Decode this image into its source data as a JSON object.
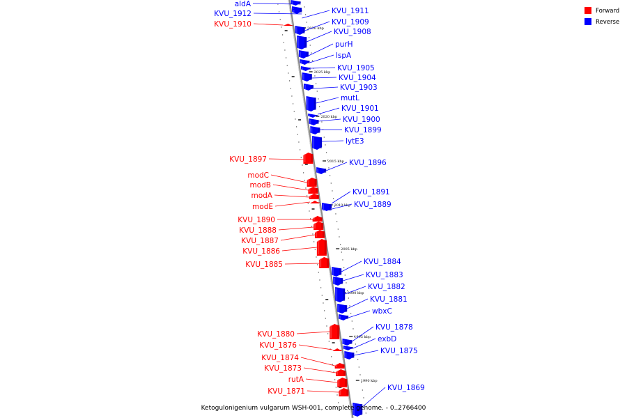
{
  "caption": "Ketogulonigenium vulgarum WSH-001, complete genome. - 0..2766400",
  "colors": {
    "forward": "#ff0000",
    "reverse": "#0000ff",
    "backbone": "#888888"
  },
  "legend": [
    {
      "label": "Forward",
      "color": "#ff0000"
    },
    {
      "label": "Reverse",
      "color": "#0000ff"
    }
  ],
  "ticks": [
    "2030 kbp",
    "2025 kbp",
    "2020 kbp",
    "2015 kbp",
    "2010 kbp",
    "2005 kbp",
    "2000 kbp",
    "1995 kbp",
    "1990 kbp"
  ],
  "genes": [
    {
      "name": "aldA",
      "strand": "reverse"
    },
    {
      "name": "KVU_1912",
      "strand": "reverse"
    },
    {
      "name": "KVU_1911",
      "strand": "reverse"
    },
    {
      "name": "KVU_1910",
      "strand": "forward"
    },
    {
      "name": "KVU_1909",
      "strand": "reverse"
    },
    {
      "name": "KVU_1908",
      "strand": "reverse"
    },
    {
      "name": "purH",
      "strand": "reverse"
    },
    {
      "name": "lspA",
      "strand": "reverse"
    },
    {
      "name": "KVU_1905",
      "strand": "reverse"
    },
    {
      "name": "KVU_1904",
      "strand": "reverse"
    },
    {
      "name": "KVU_1903",
      "strand": "reverse"
    },
    {
      "name": "mutL",
      "strand": "reverse"
    },
    {
      "name": "KVU_1901",
      "strand": "reverse"
    },
    {
      "name": "KVU_1900",
      "strand": "reverse"
    },
    {
      "name": "KVU_1899",
      "strand": "reverse"
    },
    {
      "name": "lytE3",
      "strand": "reverse"
    },
    {
      "name": "KVU_1897",
      "strand": "forward"
    },
    {
      "name": "KVU_1896",
      "strand": "reverse"
    },
    {
      "name": "modC",
      "strand": "forward"
    },
    {
      "name": "modB",
      "strand": "forward"
    },
    {
      "name": "modA",
      "strand": "forward"
    },
    {
      "name": "modE",
      "strand": "forward"
    },
    {
      "name": "KVU_1891",
      "strand": "reverse"
    },
    {
      "name": "KVU_1889",
      "strand": "reverse"
    },
    {
      "name": "KVU_1890",
      "strand": "forward"
    },
    {
      "name": "KVU_1888",
      "strand": "forward"
    },
    {
      "name": "KVU_1887",
      "strand": "forward"
    },
    {
      "name": "KVU_1886",
      "strand": "forward"
    },
    {
      "name": "KVU_1885",
      "strand": "forward"
    },
    {
      "name": "KVU_1884",
      "strand": "reverse"
    },
    {
      "name": "KVU_1883",
      "strand": "reverse"
    },
    {
      "name": "KVU_1882",
      "strand": "reverse"
    },
    {
      "name": "KVU_1881",
      "strand": "reverse"
    },
    {
      "name": "wbxC",
      "strand": "reverse"
    },
    {
      "name": "KVU_1880",
      "strand": "forward"
    },
    {
      "name": "KVU_1878",
      "strand": "reverse"
    },
    {
      "name": "exbD",
      "strand": "reverse"
    },
    {
      "name": "KVU_1876",
      "strand": "forward"
    },
    {
      "name": "KVU_1875",
      "strand": "reverse"
    },
    {
      "name": "KVU_1874",
      "strand": "forward"
    },
    {
      "name": "KVU_1873",
      "strand": "forward"
    },
    {
      "name": "rutA",
      "strand": "forward"
    },
    {
      "name": "KVU_1871",
      "strand": "forward"
    },
    {
      "name": "KVU_1869",
      "strand": "reverse"
    }
  ]
}
